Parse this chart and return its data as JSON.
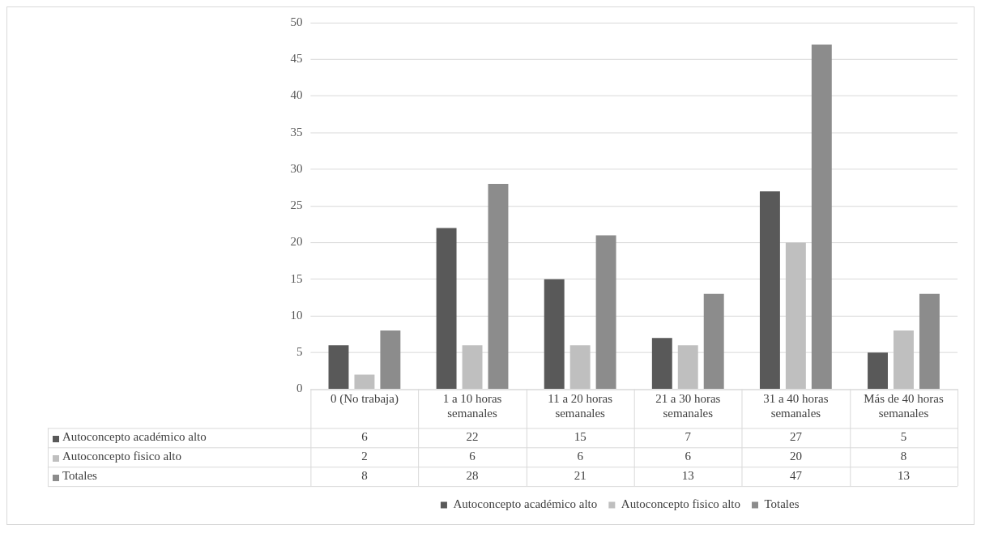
{
  "chart_data": {
    "type": "bar",
    "categories": [
      "0 (No trabaja)",
      "1 a 10 horas semanales",
      "11 a 20 horas semanales",
      "21 a 30 horas semanales",
      "31 a 40 horas semanales",
      "Más de 40 horas semanales"
    ],
    "series": [
      {
        "name": "Autoconcepto académico alto",
        "color": "#595959",
        "values": [
          6,
          22,
          15,
          7,
          27,
          5
        ]
      },
      {
        "name": "Autoconcepto fisico alto",
        "color": "#bfbfbf",
        "values": [
          2,
          6,
          6,
          6,
          20,
          8
        ]
      },
      {
        "name": "Totales",
        "color": "#8c8c8c",
        "values": [
          8,
          28,
          21,
          13,
          47,
          13
        ]
      }
    ],
    "ylim": [
      0,
      50
    ],
    "yticks": [
      0,
      5,
      10,
      15,
      20,
      25,
      30,
      35,
      40,
      45,
      50
    ],
    "grid": "y",
    "legend": "bottom",
    "data_labels": true
  }
}
